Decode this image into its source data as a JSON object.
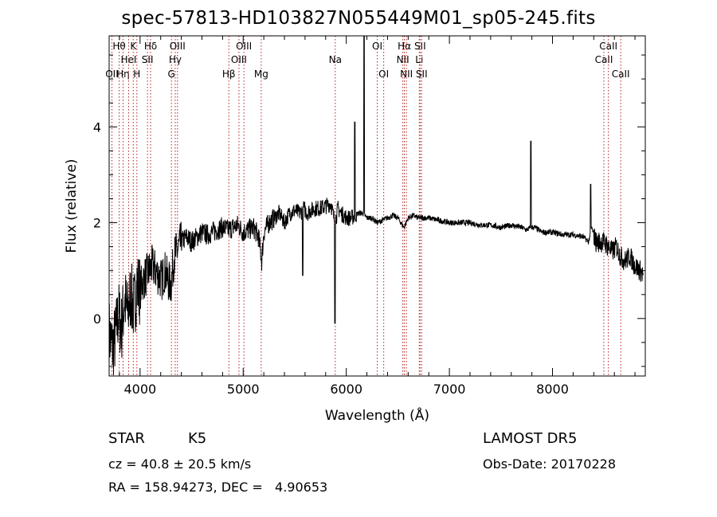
{
  "title": "spec-57813-HD103827N055449M01_sp05-245.fits",
  "info": {
    "class_label": "STAR",
    "subclass": "K5",
    "redshift": "cz = 40.8 ± 20.5 km/s",
    "coords": "RA = 158.94273, DEC =   4.90653",
    "survey": "LAMOST DR5",
    "obs_date": "Obs-Date: 20170228"
  },
  "chart_data": {
    "type": "line",
    "xlabel": "Wavelength (Å)",
    "ylabel": "Flux (relative)",
    "xlim": [
      3700,
      8900
    ],
    "ylim": [
      -1.2,
      5.9
    ],
    "x_ticks": [
      4000,
      5000,
      6000,
      7000,
      8000
    ],
    "y_ticks": [
      0,
      2,
      4
    ],
    "grid": false,
    "line_color": "#000000",
    "marker_color": "#b22222",
    "series": [
      {
        "x": [
          3700,
          3730,
          3760,
          3790,
          3820,
          3850,
          3880,
          3910,
          3940,
          3970,
          4000,
          4030,
          4060,
          4090,
          4120,
          4150,
          4180,
          4210,
          4240,
          4270,
          4300,
          4330,
          4360,
          4400,
          4450,
          4500,
          4550,
          4600,
          4650,
          4700,
          4750,
          4800,
          4850,
          4900,
          4950,
          5000,
          5050,
          5100,
          5150,
          5180,
          5200,
          5250,
          5300,
          5350,
          5400,
          5450,
          5500,
          5550,
          5590,
          5620,
          5650,
          5700,
          5750,
          5800,
          5850,
          5890,
          5920,
          5950,
          6000,
          6050,
          6080,
          6120,
          6160,
          6200,
          6250,
          6300,
          6350,
          6400,
          6450,
          6500,
          6560,
          6600,
          6650,
          6700,
          6750,
          6800,
          6900,
          7000,
          7100,
          7200,
          7300,
          7400,
          7500,
          7600,
          7700,
          7750,
          7790,
          7830,
          7900,
          8000,
          8100,
          8200,
          8300,
          8350,
          8380,
          8420,
          8500,
          8540,
          8580,
          8620,
          8660,
          8700,
          8750,
          8800,
          8850,
          8880
        ],
        "y": [
          -0.3,
          -0.6,
          -0.4,
          0.1,
          -0.2,
          0.4,
          0.1,
          0.5,
          0.2,
          0.7,
          0.6,
          0.8,
          0.9,
          1.0,
          1.1,
          1.0,
          0.9,
          0.8,
          1.0,
          0.8,
          0.7,
          1.3,
          1.4,
          1.6,
          1.7,
          1.6,
          1.7,
          1.8,
          1.75,
          1.8,
          1.85,
          1.9,
          1.85,
          1.9,
          1.95,
          1.8,
          1.85,
          1.9,
          1.7,
          1.2,
          1.8,
          2.0,
          2.1,
          2.2,
          2.0,
          2.2,
          2.25,
          2.2,
          2.3,
          2.2,
          2.25,
          2.3,
          2.3,
          2.35,
          2.4,
          2.0,
          2.3,
          2.2,
          2.1,
          2.1,
          2.15,
          2.2,
          2.2,
          2.1,
          2.1,
          2.0,
          2.05,
          2.1,
          2.15,
          2.1,
          1.9,
          2.1,
          2.15,
          2.1,
          2.1,
          2.1,
          2.05,
          2.0,
          2.0,
          2.0,
          1.95,
          1.95,
          1.9,
          1.95,
          1.9,
          1.85,
          1.9,
          1.9,
          1.8,
          1.8,
          1.75,
          1.75,
          1.7,
          1.6,
          1.9,
          1.6,
          1.6,
          1.5,
          1.4,
          1.5,
          1.3,
          1.2,
          1.3,
          1.1,
          1.0,
          0.9
        ]
      }
    ],
    "line_markers": [
      {
        "x": 3727,
        "labels": [
          "OII"
        ],
        "rows": [
          3
        ]
      },
      {
        "x": 3797,
        "labels": [
          "Hθ"
        ],
        "rows": [
          1
        ]
      },
      {
        "x": 3835,
        "labels": [
          "Hη"
        ],
        "rows": [
          3
        ]
      },
      {
        "x": 3889,
        "labels": [
          "HeI"
        ],
        "rows": [
          2
        ]
      },
      {
        "x": 3934,
        "labels": [
          "K"
        ],
        "rows": [
          1
        ]
      },
      {
        "x": 3969,
        "labels": [
          "H"
        ],
        "rows": [
          3
        ]
      },
      {
        "x": 4072,
        "labels": [
          "SII"
        ],
        "rows": [
          2
        ]
      },
      {
        "x": 4102,
        "labels": [
          "Hδ"
        ],
        "rows": [
          1
        ]
      },
      {
        "x": 4304,
        "labels": [
          "G"
        ],
        "rows": [
          3
        ]
      },
      {
        "x": 4341,
        "labels": [
          "Hγ"
        ],
        "rows": [
          2
        ]
      },
      {
        "x": 4363,
        "labels": [
          "OIII"
        ],
        "rows": [
          1
        ]
      },
      {
        "x": 4861,
        "labels": [
          "Hβ"
        ],
        "rows": [
          3
        ]
      },
      {
        "x": 4959,
        "labels": [
          "OIII"
        ],
        "rows": [
          2
        ]
      },
      {
        "x": 5007,
        "labels": [
          "OIII"
        ],
        "rows": [
          1
        ]
      },
      {
        "x": 5175,
        "labels": [
          "Mg"
        ],
        "rows": [
          3
        ]
      },
      {
        "x": 5893,
        "labels": [
          "Na"
        ],
        "rows": [
          2
        ]
      },
      {
        "x": 6300,
        "labels": [
          "OI"
        ],
        "rows": [
          1
        ]
      },
      {
        "x": 6363,
        "labels": [
          "OI"
        ],
        "rows": [
          3
        ]
      },
      {
        "x": 6548,
        "labels": [
          "NII"
        ],
        "rows": [
          2
        ]
      },
      {
        "x": 6563,
        "labels": [
          "Hα"
        ],
        "rows": [
          1
        ]
      },
      {
        "x": 6583,
        "labels": [
          "NII"
        ],
        "rows": [
          3
        ]
      },
      {
        "x": 6708,
        "labels": [
          "Li"
        ],
        "rows": [
          2
        ]
      },
      {
        "x": 6716,
        "labels": [
          "SII"
        ],
        "rows": [
          1
        ]
      },
      {
        "x": 6731,
        "labels": [
          "SII"
        ],
        "rows": [
          3
        ]
      },
      {
        "x": 8498,
        "labels": [
          "CaII"
        ],
        "rows": [
          2
        ]
      },
      {
        "x": 8542,
        "labels": [
          "CaII"
        ],
        "rows": [
          1
        ]
      },
      {
        "x": 8662,
        "labels": [
          "CaII"
        ],
        "rows": [
          3
        ]
      }
    ],
    "sharp_features": [
      {
        "x": 5577,
        "y": 0.9
      },
      {
        "x": 5890,
        "y": -0.1
      },
      {
        "x": 6083,
        "y": 4.1
      },
      {
        "x": 6173,
        "y": 5.9
      },
      {
        "x": 7790,
        "y": 3.7
      },
      {
        "x": 8370,
        "y": 2.8
      }
    ]
  }
}
